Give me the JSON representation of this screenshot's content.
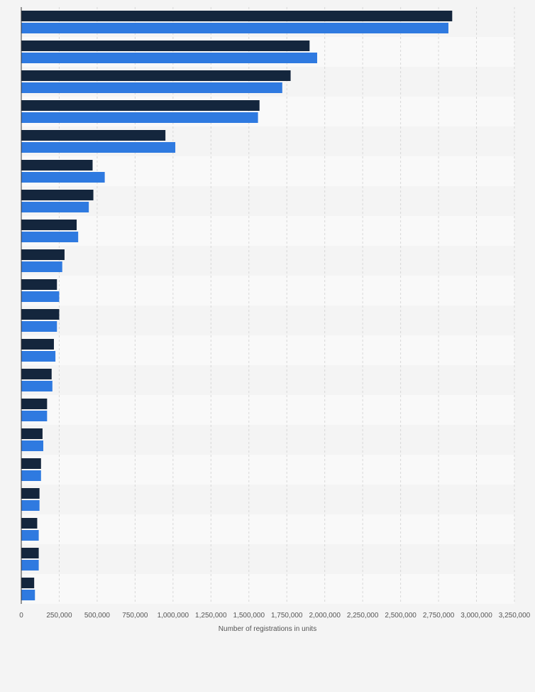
{
  "chart_data": {
    "type": "bar",
    "orientation": "horizontal",
    "title": "",
    "xlabel": "Number of registrations in units",
    "ylabel": "",
    "xlim": [
      0,
      3250000
    ],
    "x_ticks": [
      0,
      250000,
      500000,
      750000,
      1000000,
      1250000,
      1500000,
      1750000,
      2000000,
      2250000,
      2500000,
      2750000,
      3000000,
      3250000
    ],
    "x_tick_labels": [
      "0",
      "250,000",
      "500,000",
      "750,000",
      "1,000,000",
      "1,250,000",
      "1,500,000",
      "1,750,000",
      "2,000,000",
      "2,250,000",
      "2,500,000",
      "2,750,000",
      "3,000,000",
      "3,250,000"
    ],
    "grid": true,
    "legend": "none",
    "categories": [
      "",
      "",
      "",
      "",
      "",
      "",
      "",
      "",
      "",
      "",
      "",
      "",
      "",
      "",
      "",
      "",
      "",
      "",
      "",
      ""
    ],
    "series": [
      {
        "color": "#14263d",
        "values": [
          2840000,
          1900000,
          1775000,
          1570000,
          950000,
          470000,
          475000,
          365000,
          285000,
          235000,
          250000,
          215000,
          200000,
          170000,
          140000,
          130000,
          120000,
          105000,
          115000,
          85000
        ]
      },
      {
        "color": "#2f7ae0",
        "values": [
          2815000,
          1950000,
          1720000,
          1560000,
          1015000,
          550000,
          445000,
          375000,
          270000,
          250000,
          235000,
          225000,
          205000,
          170000,
          145000,
          130000,
          120000,
          115000,
          115000,
          90000
        ]
      }
    ]
  }
}
